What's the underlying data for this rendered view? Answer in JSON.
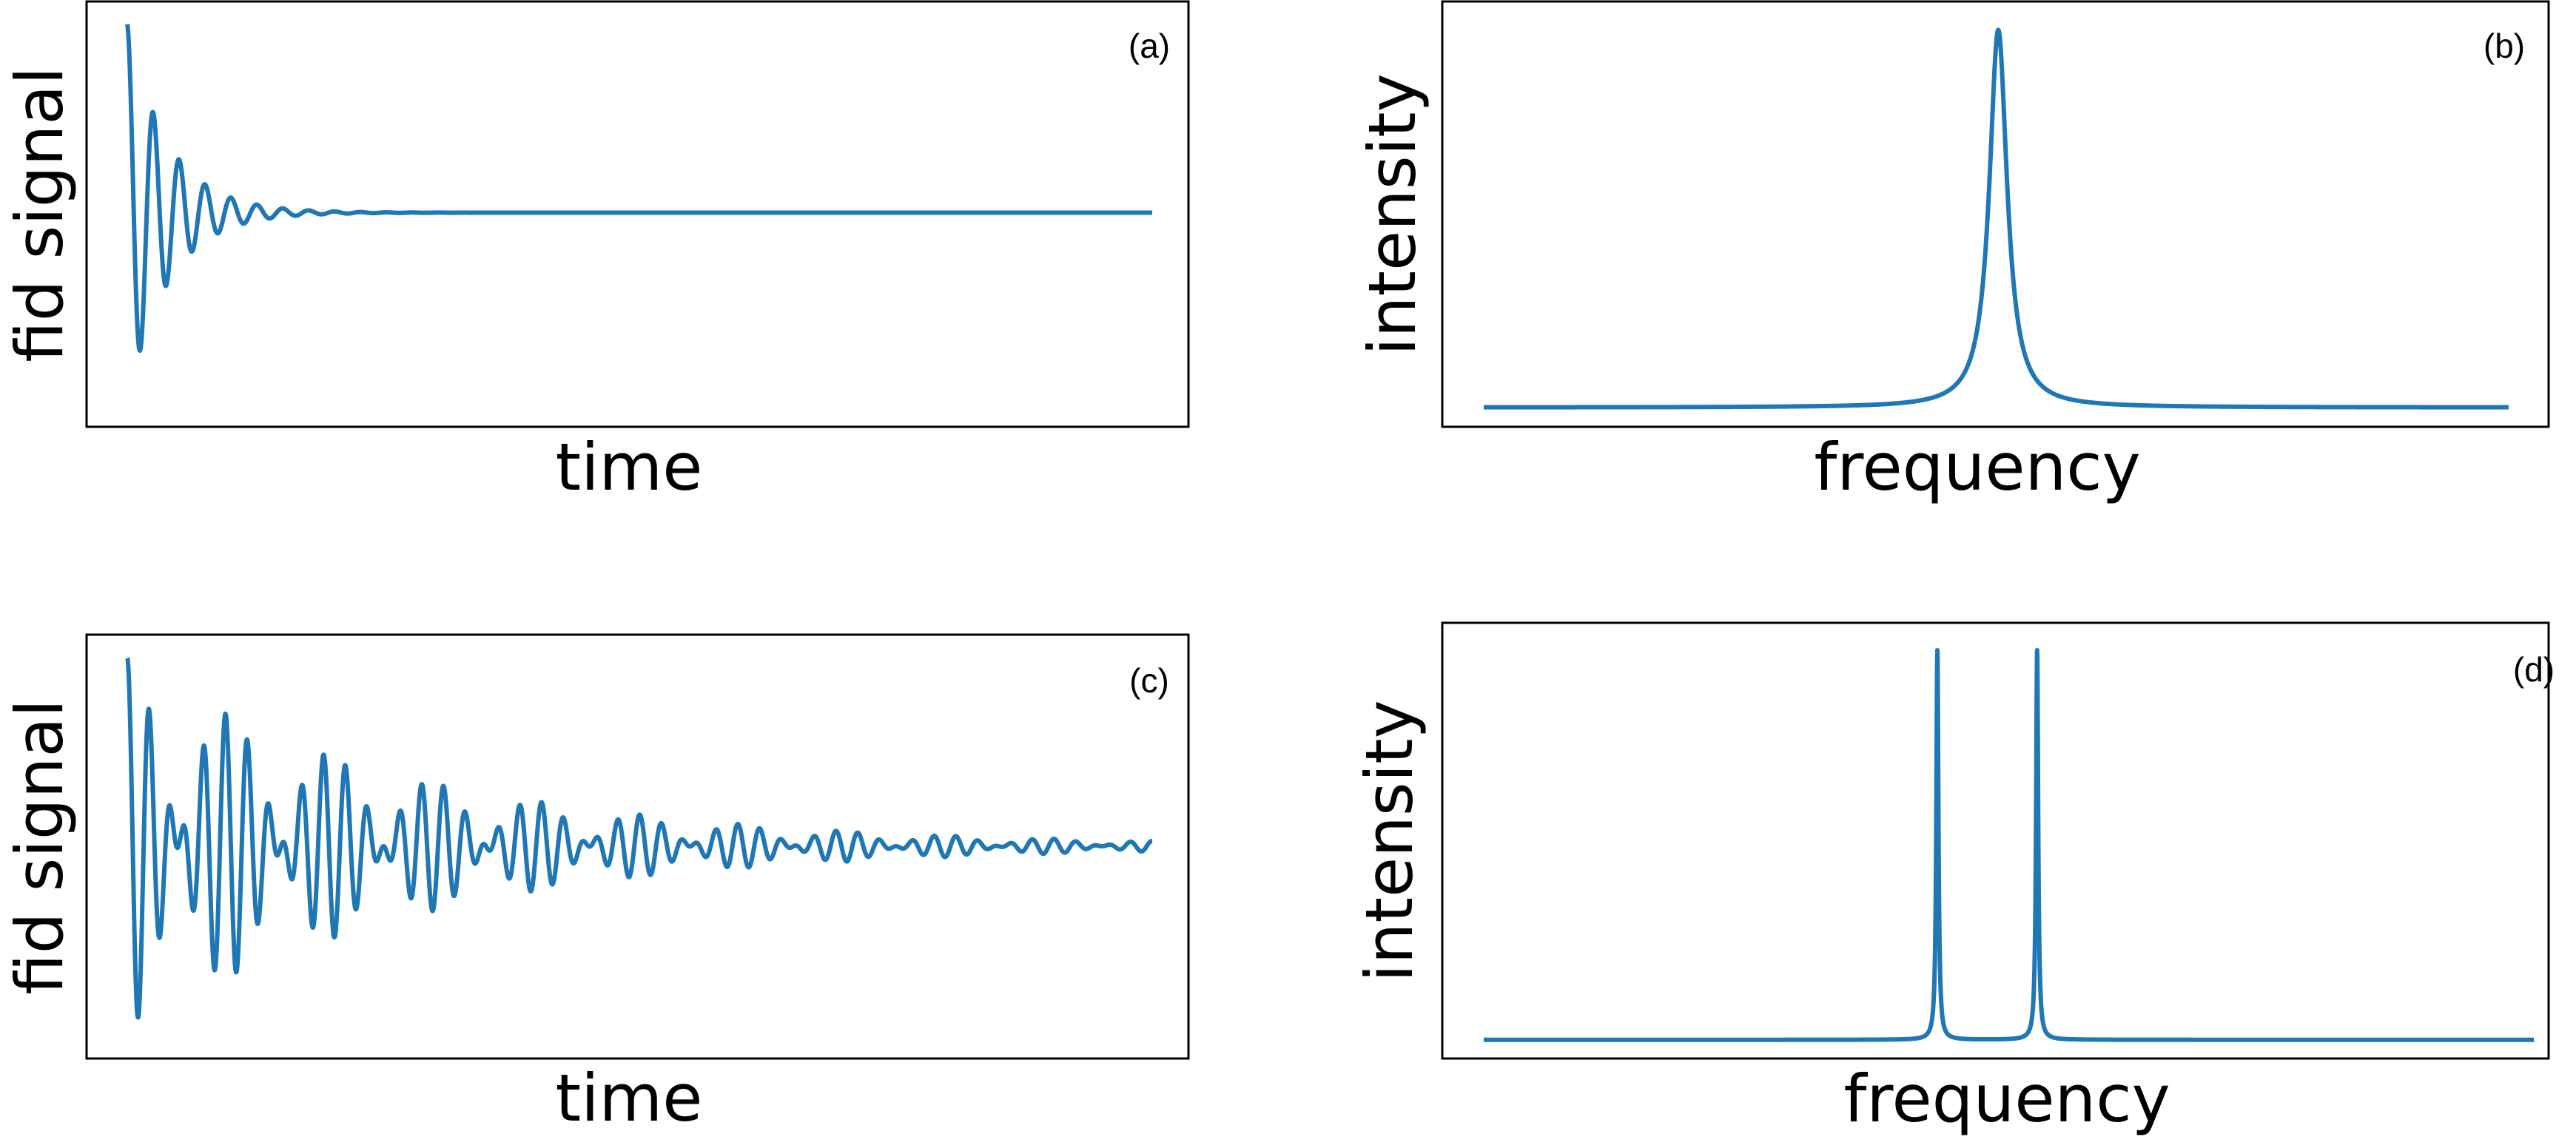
{
  "chart_data": [
    {
      "panel": "(a)",
      "type": "line",
      "xlabel": "time",
      "ylabel": "fid signal",
      "grid": false,
      "ticks": "none",
      "series": [
        {
          "color": "#1f77b4",
          "function": "exp(-t/tau)*cos(2*pi*f*t)",
          "components": [
            {
              "frequency": 39.5,
              "amplitude": 1.0
            }
          ],
          "decay_time_constant": 0.04,
          "t_range": [
            0,
            1
          ],
          "ylim": [
            -1.05,
            1.05
          ]
        }
      ]
    },
    {
      "panel": "(b)",
      "type": "line",
      "xlabel": "frequency",
      "ylabel": "intensity",
      "grid": false,
      "ticks": "none",
      "series": [
        {
          "color": "#1f77b4",
          "function": "lorentzian",
          "peaks": [
            {
              "center": 0.502,
              "half_width": 0.0105,
              "height": 1.0
            }
          ],
          "x_range": [
            0,
            1
          ],
          "ylim": [
            -0.01,
            1.04
          ]
        }
      ]
    },
    {
      "panel": "(c)",
      "type": "line",
      "xlabel": "time",
      "ylabel": "fid signal",
      "grid": false,
      "ticks": "none",
      "series": [
        {
          "color": "#1f77b4",
          "function": "exp(-t/tau)*sum(cos(2*pi*f_i*t))/2",
          "components": [
            {
              "frequency": 52.0,
              "amplitude": 0.5
            },
            {
              "frequency": 42.0,
              "amplitude": 0.5
            }
          ],
          "decay_time_constant": 0.28,
          "t_range": [
            0,
            1
          ],
          "ylim": [
            -1.05,
            1.05
          ]
        }
      ]
    },
    {
      "panel": "(d)",
      "type": "line",
      "xlabel": "frequency",
      "ylabel": "intensity",
      "grid": false,
      "ticks": "none",
      "series": [
        {
          "color": "#1f77b4",
          "function": "lorentzian",
          "peaks": [
            {
              "center": 0.432,
              "half_width": 0.0012,
              "height": 1.0
            },
            {
              "center": 0.527,
              "half_width": 0.0012,
              "height": 1.0
            }
          ],
          "x_range": [
            0,
            1
          ],
          "ylim": [
            -0.01,
            1.04
          ]
        }
      ]
    }
  ]
}
